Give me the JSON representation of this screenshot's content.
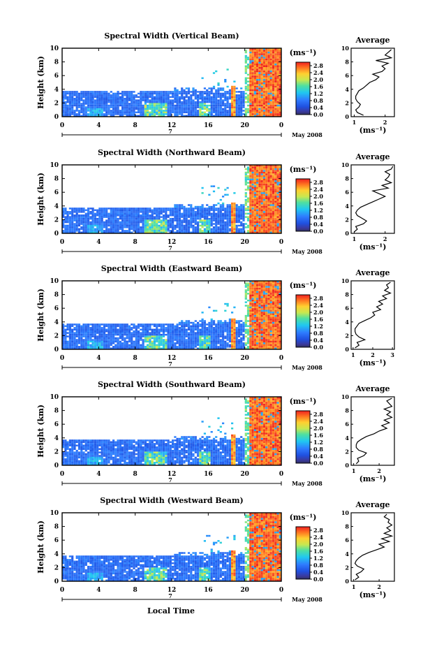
{
  "figure": {
    "xlabel": "Local Time",
    "date_label": "May 2008",
    "day_label": "7",
    "ylabel": "Height (km)",
    "cbar_unit": "(ms⁻¹)",
    "avg_title": "Average",
    "avg_unit": "(ms⁻¹)"
  },
  "chart_data": [
    {
      "type": "heatmap",
      "title": "Spectral Width (Vertical Beam)",
      "xlabel": "Local Time",
      "ylabel": "Height (km)",
      "x_ticks": [
        "0",
        "4",
        "8",
        "12",
        "16",
        "20",
        "0"
      ],
      "y_ticks": [
        "0",
        "2",
        "4",
        "6",
        "8",
        "10"
      ],
      "xlim": [
        0,
        24
      ],
      "ylim": [
        0,
        10
      ],
      "colorbar": {
        "unit": "(ms⁻¹)",
        "ticks": [
          "0.0",
          "0.4",
          "0.8",
          "1.2",
          "1.6",
          "2.0",
          "2.4",
          "2.8"
        ],
        "range": [
          0,
          3.0
        ]
      },
      "average_profile": {
        "title": "Average",
        "xlabel": "(ms⁻¹)",
        "x_ticks": [
          "1",
          "2"
        ],
        "xlim": [
          0.9,
          2.3
        ],
        "height": [
          0.2,
          0.6,
          1.0,
          1.4,
          1.8,
          2.2,
          2.6,
          3.0,
          3.4,
          3.8,
          4.2,
          4.6,
          5.0,
          5.4,
          5.8,
          6.2,
          6.6,
          7.0,
          7.4,
          7.8,
          8.2,
          8.6,
          9.0,
          9.4,
          9.8
        ],
        "value": [
          1.3,
          1.1,
          1.05,
          1.15,
          1.2,
          1.1,
          1.05,
          1.05,
          1.1,
          1.15,
          1.3,
          1.4,
          1.5,
          1.7,
          1.8,
          1.6,
          1.9,
          2.0,
          1.9,
          2.1,
          1.7,
          2.2,
          2.0,
          2.1,
          2.2
        ]
      }
    },
    {
      "type": "heatmap",
      "title": "Spectral Width (Northward Beam)",
      "xlabel": "Local Time",
      "ylabel": "Height (km)",
      "x_ticks": [
        "0",
        "4",
        "8",
        "12",
        "16",
        "20",
        "0"
      ],
      "y_ticks": [
        "0",
        "2",
        "4",
        "6",
        "8",
        "10"
      ],
      "xlim": [
        0,
        24
      ],
      "ylim": [
        0,
        10
      ],
      "colorbar": {
        "unit": "(ms⁻¹)",
        "ticks": [
          "0.0",
          "0.4",
          "0.8",
          "1.2",
          "1.6",
          "2.0",
          "2.4",
          "2.8"
        ],
        "range": [
          0,
          3.0
        ]
      },
      "average_profile": {
        "title": "Average",
        "xlabel": "(ms⁻¹)",
        "x_ticks": [
          "1",
          "2"
        ],
        "xlim": [
          0.9,
          2.3
        ],
        "height": [
          0.2,
          0.6,
          1.0,
          1.4,
          1.8,
          2.2,
          2.6,
          3.0,
          3.4,
          3.8,
          4.2,
          4.6,
          5.0,
          5.4,
          5.8,
          6.2,
          6.6,
          7.0,
          7.4,
          7.8,
          8.2,
          8.6,
          9.0,
          9.4,
          9.8
        ],
        "value": [
          1.0,
          1.1,
          1.05,
          1.3,
          1.4,
          1.25,
          1.1,
          1.05,
          1.1,
          1.2,
          1.4,
          1.6,
          1.8,
          2.0,
          1.8,
          1.6,
          2.1,
          1.9,
          2.2,
          2.0,
          2.1,
          2.15,
          2.0,
          2.2,
          2.25
        ]
      }
    },
    {
      "type": "heatmap",
      "title": "Spectral Width (Eastward Beam)",
      "xlabel": "Local Time",
      "ylabel": "Height (km)",
      "x_ticks": [
        "0",
        "4",
        "8",
        "12",
        "16",
        "20",
        "0"
      ],
      "y_ticks": [
        "0",
        "2",
        "4",
        "6",
        "8",
        "10"
      ],
      "xlim": [
        0,
        24
      ],
      "ylim": [
        0,
        10
      ],
      "colorbar": {
        "unit": "(ms⁻¹)",
        "ticks": [
          "0.0",
          "0.4",
          "0.8",
          "1.2",
          "1.6",
          "2.0",
          "2.4",
          "2.8"
        ],
        "range": [
          0,
          3.0
        ]
      },
      "average_profile": {
        "title": "Average",
        "xlabel": "(ms⁻¹)",
        "x_ticks": [
          "1",
          "2",
          "3"
        ],
        "xlim": [
          0.9,
          3.1
        ],
        "height": [
          0.2,
          0.6,
          1.0,
          1.4,
          1.8,
          2.2,
          2.6,
          3.0,
          3.4,
          3.8,
          4.2,
          4.6,
          5.0,
          5.4,
          5.8,
          6.2,
          6.6,
          7.0,
          7.4,
          7.8,
          8.2,
          8.6,
          9.0,
          9.4,
          9.8
        ],
        "value": [
          1.1,
          1.3,
          1.2,
          1.6,
          1.3,
          1.15,
          1.1,
          1.1,
          1.2,
          1.3,
          1.6,
          1.9,
          2.1,
          2.0,
          2.4,
          2.2,
          2.5,
          2.3,
          2.7,
          2.5,
          2.9,
          2.6,
          2.8,
          2.7,
          2.9
        ]
      }
    },
    {
      "type": "heatmap",
      "title": "Spectral Width (Southward Beam)",
      "xlabel": "Local Time",
      "ylabel": "Height (km)",
      "x_ticks": [
        "0",
        "4",
        "8",
        "12",
        "16",
        "20",
        "0"
      ],
      "y_ticks": [
        "0",
        "2",
        "4",
        "6",
        "8",
        "10"
      ],
      "xlim": [
        0,
        24
      ],
      "ylim": [
        0,
        10
      ],
      "colorbar": {
        "unit": "(ms⁻¹)",
        "ticks": [
          "0.0",
          "0.4",
          "0.8",
          "1.2",
          "1.6",
          "2.0",
          "2.4",
          "2.8"
        ],
        "range": [
          0,
          3.0
        ]
      },
      "average_profile": {
        "title": "Average",
        "xlabel": "(ms⁻¹)",
        "x_ticks": [
          "1",
          "2"
        ],
        "xlim": [
          0.9,
          2.6
        ],
        "height": [
          0.2,
          0.6,
          1.0,
          1.4,
          1.8,
          2.2,
          2.6,
          3.0,
          3.4,
          3.8,
          4.2,
          4.6,
          5.0,
          5.4,
          5.8,
          6.2,
          6.6,
          7.0,
          7.4,
          7.8,
          8.2,
          8.6,
          9.0,
          9.4,
          9.8
        ],
        "value": [
          1.1,
          1.2,
          1.15,
          1.4,
          1.5,
          1.2,
          1.1,
          1.1,
          1.15,
          1.3,
          1.5,
          1.8,
          2.0,
          2.3,
          2.1,
          2.4,
          2.2,
          2.5,
          2.3,
          2.45,
          2.2,
          2.5,
          2.4,
          2.3,
          2.5
        ]
      }
    },
    {
      "type": "heatmap",
      "title": "Spectral Width (Westward Beam)",
      "xlabel": "Local Time",
      "ylabel": "Height (km)",
      "x_ticks": [
        "0",
        "4",
        "8",
        "12",
        "16",
        "20",
        "0"
      ],
      "y_ticks": [
        "0",
        "2",
        "4",
        "6",
        "8",
        "10"
      ],
      "xlim": [
        0,
        24
      ],
      "ylim": [
        0,
        10
      ],
      "colorbar": {
        "unit": "(ms⁻¹)",
        "ticks": [
          "0.0",
          "0.4",
          "0.8",
          "1.2",
          "1.6",
          "2.0",
          "2.4",
          "2.8"
        ],
        "range": [
          0,
          3.0
        ]
      },
      "average_profile": {
        "title": "Average",
        "xlabel": "(ms⁻¹)",
        "x_ticks": [
          "1",
          "2"
        ],
        "xlim": [
          0.9,
          2.6
        ],
        "height": [
          0.2,
          0.6,
          1.0,
          1.4,
          1.8,
          2.2,
          2.6,
          3.0,
          3.4,
          3.8,
          4.2,
          4.6,
          5.0,
          5.4,
          5.8,
          6.2,
          6.6,
          7.0,
          7.4,
          7.8,
          8.2,
          8.6,
          9.0,
          9.4,
          9.8
        ],
        "value": [
          1.05,
          1.2,
          1.1,
          1.3,
          1.4,
          1.15,
          1.05,
          1.1,
          1.2,
          1.35,
          1.6,
          1.9,
          2.2,
          2.0,
          2.4,
          2.1,
          2.5,
          2.2,
          2.45,
          2.3,
          2.5,
          2.35,
          2.4,
          2.2,
          2.3
        ]
      }
    }
  ]
}
